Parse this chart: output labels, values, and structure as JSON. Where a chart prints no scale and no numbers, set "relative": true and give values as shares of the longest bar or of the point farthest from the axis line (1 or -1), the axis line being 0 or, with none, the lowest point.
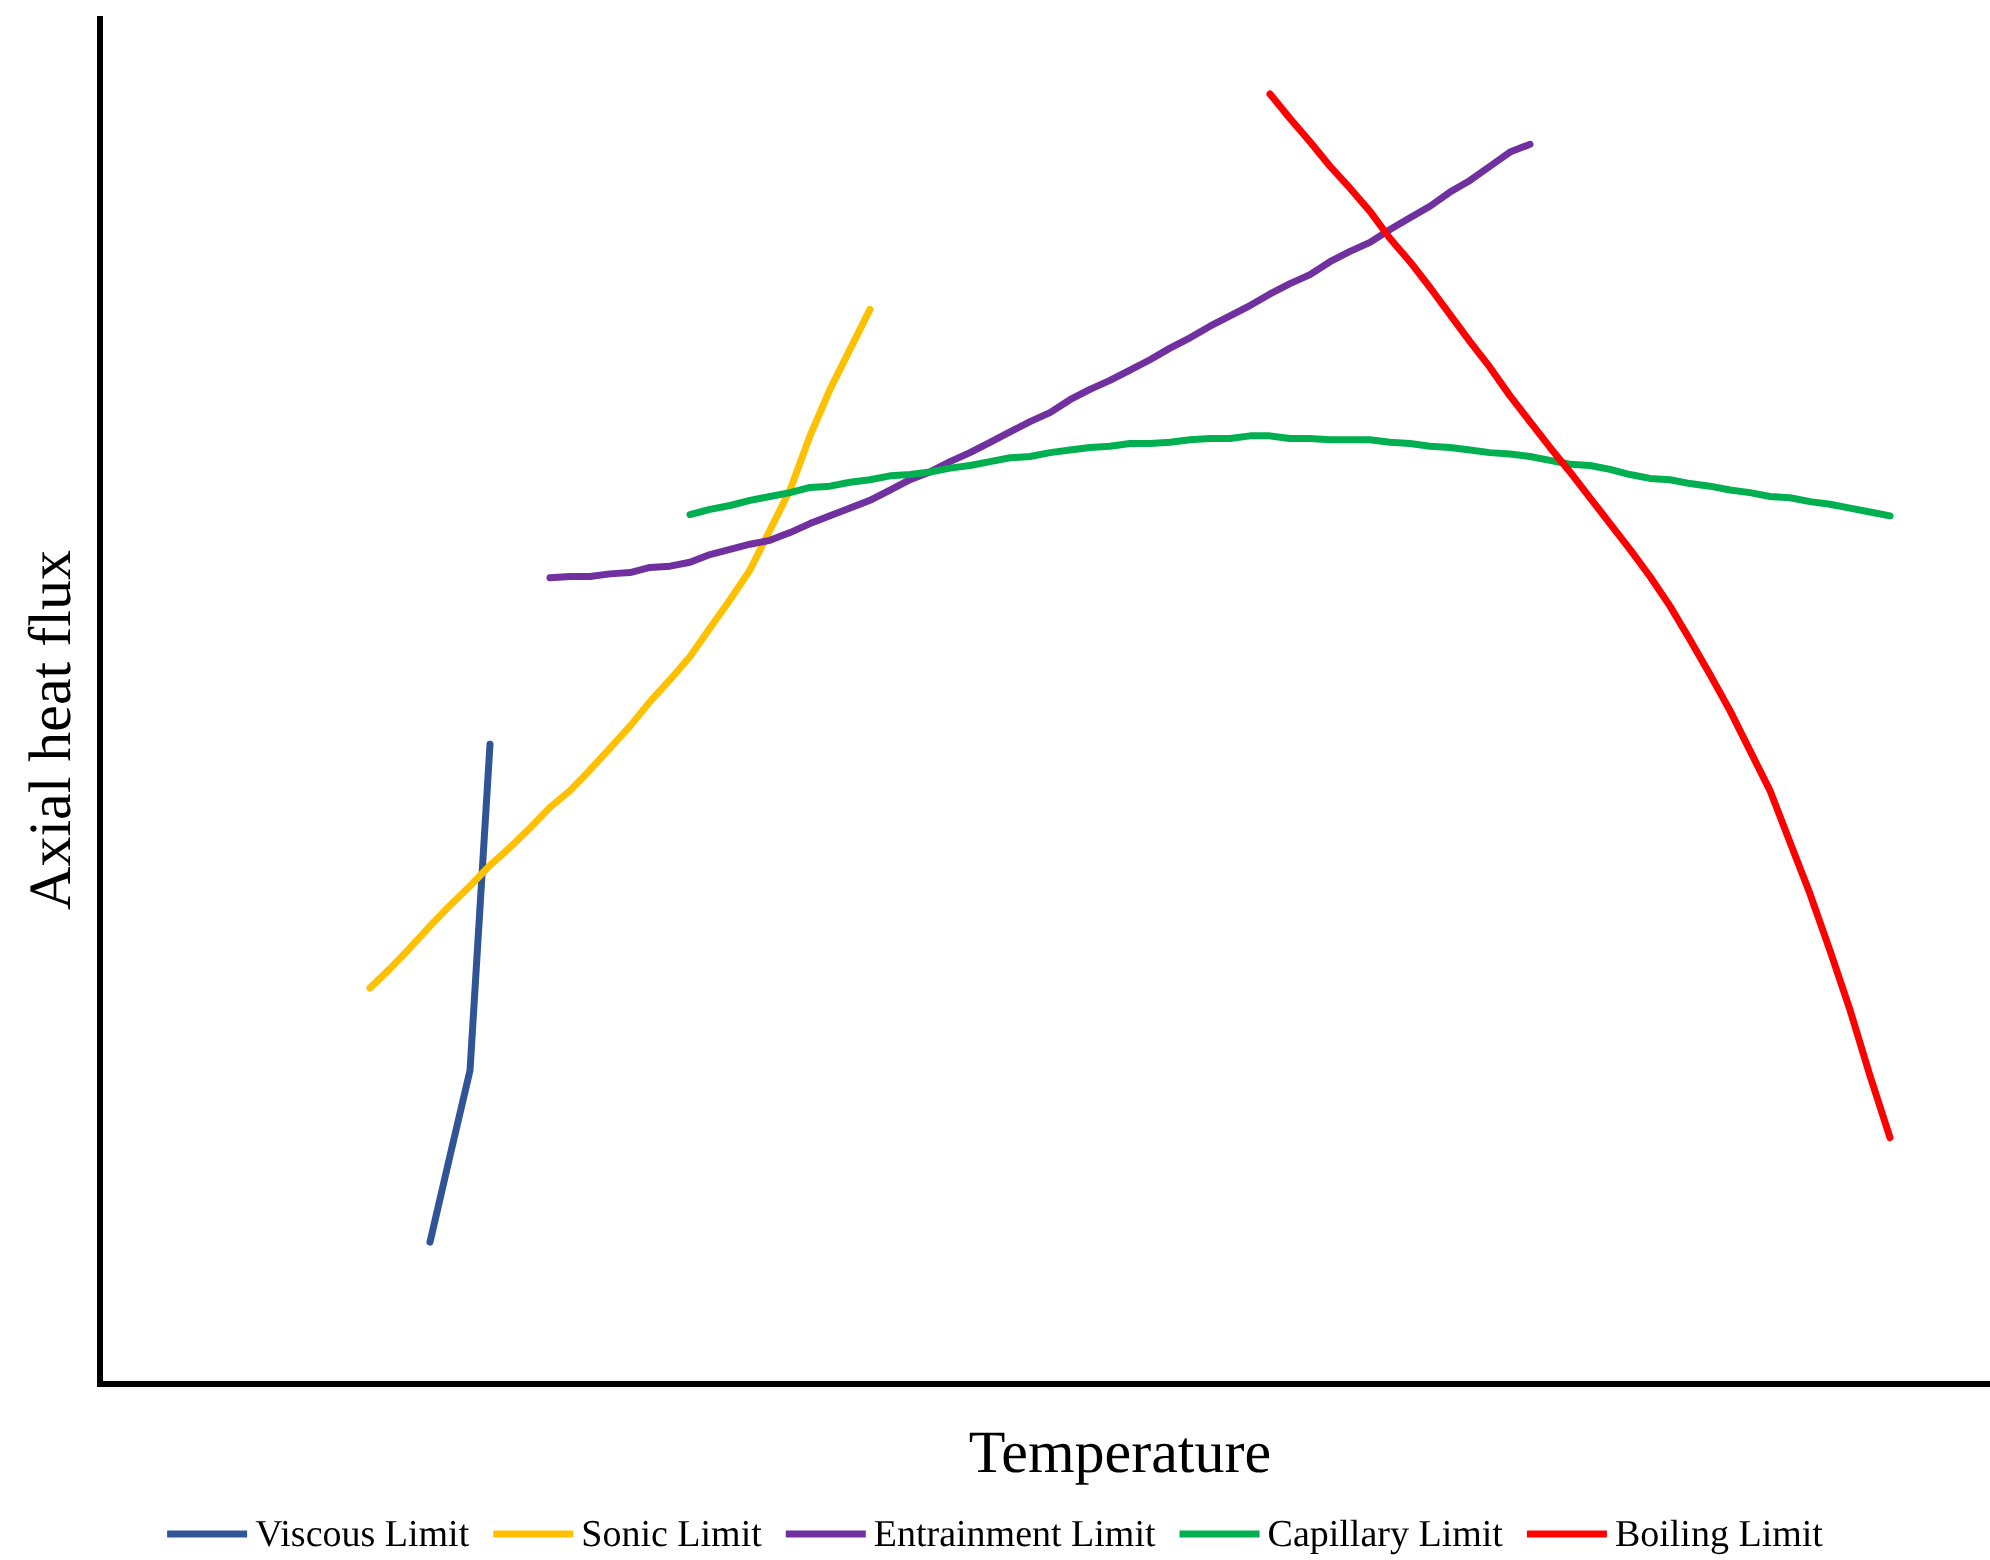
{
  "chart_data": {
    "type": "line",
    "relative": true,
    "xlabel": "Temperature",
    "ylabel": "Axial heat flux",
    "legend": "bottom",
    "categories": [
      null,
      null,
      null,
      null,
      null,
      null,
      null,
      null,
      null,
      null,
      null,
      null,
      null,
      null,
      null,
      null,
      null,
      null,
      null,
      null,
      null,
      null,
      null,
      null,
      null,
      null,
      null,
      null,
      null,
      null,
      null,
      null,
      null,
      null,
      null,
      null,
      null,
      null,
      null,
      null,
      null,
      null,
      null,
      null,
      null,
      null,
      null,
      null,
      null,
      null,
      null,
      null,
      null,
      null,
      null,
      null,
      null,
      null,
      null,
      null,
      null,
      null,
      null,
      null,
      null,
      null,
      null,
      null,
      null,
      null,
      null,
      null,
      null,
      null,
      null,
      null,
      null
    ],
    "series": [
      {
        "name": "Viscous Limit",
        "color": "#2f5597",
        "values": [
          null,
          null,
          null,
          0.11,
          0.177,
          0.243,
          0.496,
          null,
          null,
          null,
          null,
          null,
          null,
          null,
          null,
          null,
          null,
          null,
          null,
          null,
          null,
          null,
          null,
          null,
          null,
          null,
          null,
          null,
          null,
          null,
          null,
          null,
          null,
          null,
          null,
          null,
          null,
          null,
          null,
          null,
          null,
          null,
          null,
          null,
          null,
          null,
          null,
          null,
          null,
          null,
          null,
          null,
          null,
          null,
          null,
          null,
          null,
          null,
          null,
          null,
          null,
          null,
          null,
          null,
          null,
          null,
          null,
          null,
          null,
          null,
          null,
          null,
          null,
          null,
          null,
          null,
          null
        ]
      },
      {
        "name": "Sonic Limit",
        "color": "#ffc000",
        "values": [
          0.307,
          0.322,
          0.338,
          0.355,
          0.371,
          0.386,
          0.402,
          0.416,
          0.431,
          0.447,
          0.46,
          0.476,
          0.493,
          0.51,
          0.529,
          0.546,
          0.564,
          0.586,
          0.608,
          0.631,
          0.662,
          0.693,
          0.735,
          0.771,
          0.802,
          0.833,
          null,
          null,
          null,
          null,
          null,
          null,
          null,
          null,
          null,
          null,
          null,
          null,
          null,
          null,
          null,
          null,
          null,
          null,
          null,
          null,
          null,
          null,
          null,
          null,
          null,
          null,
          null,
          null,
          null,
          null,
          null,
          null,
          null,
          null,
          null,
          null,
          null,
          null,
          null,
          null,
          null,
          null,
          null,
          null,
          null,
          null,
          null,
          null,
          null,
          null,
          null
        ]
      },
      {
        "name": "Entrainment Limit",
        "color": "#7030a0",
        "values": [
          null,
          null,
          null,
          null,
          null,
          null,
          null,
          null,
          null,
          0.625,
          0.626,
          0.626,
          0.628,
          0.629,
          0.633,
          0.634,
          0.637,
          0.643,
          0.647,
          0.651,
          0.654,
          0.66,
          0.667,
          0.673,
          0.679,
          0.685,
          0.693,
          0.701,
          0.707,
          0.715,
          0.722,
          0.73,
          0.738,
          0.746,
          0.753,
          0.763,
          0.771,
          0.778,
          0.786,
          0.794,
          0.803,
          0.811,
          0.82,
          0.828,
          0.836,
          0.845,
          0.853,
          0.86,
          0.87,
          0.878,
          0.885,
          0.895,
          0.904,
          0.913,
          0.924,
          0.933,
          0.944,
          0.955,
          0.961,
          null,
          null,
          null,
          null,
          null,
          null,
          null,
          null,
          null,
          null,
          null,
          null,
          null,
          null,
          null,
          null,
          null,
          null
        ]
      },
      {
        "name": "Capillary Limit",
        "color": "#00b050",
        "values": [
          null,
          null,
          null,
          null,
          null,
          null,
          null,
          null,
          null,
          null,
          null,
          null,
          null,
          null,
          null,
          null,
          0.674,
          0.678,
          0.681,
          0.685,
          0.688,
          0.691,
          0.695,
          0.696,
          0.699,
          0.701,
          0.704,
          0.705,
          0.707,
          0.71,
          0.712,
          0.715,
          0.718,
          0.719,
          0.722,
          0.724,
          0.726,
          0.727,
          0.729,
          0.729,
          0.73,
          0.732,
          0.733,
          0.733,
          0.735,
          0.735,
          0.733,
          0.733,
          0.732,
          0.732,
          0.732,
          0.73,
          0.729,
          0.727,
          0.726,
          0.724,
          0.722,
          0.721,
          0.719,
          0.716,
          0.713,
          0.712,
          0.709,
          0.705,
          0.702,
          0.701,
          0.698,
          0.696,
          0.693,
          0.691,
          0.688,
          0.687,
          0.684,
          0.682,
          0.679,
          0.676,
          0.673
        ]
      },
      {
        "name": "Boiling Limit",
        "color": "#ff0000",
        "values": [
          null,
          null,
          null,
          null,
          null,
          null,
          null,
          null,
          null,
          null,
          null,
          null,
          null,
          null,
          null,
          null,
          null,
          null,
          null,
          null,
          null,
          null,
          null,
          null,
          null,
          null,
          null,
          null,
          null,
          null,
          null,
          null,
          null,
          null,
          null,
          null,
          null,
          null,
          null,
          null,
          null,
          null,
          null,
          null,
          null,
          1,
          0.981,
          0.963,
          0.944,
          0.927,
          0.909,
          0.888,
          0.87,
          0.85,
          0.829,
          0.808,
          0.788,
          0.766,
          0.746,
          0.726,
          0.707,
          0.687,
          0.667,
          0.647,
          0.626,
          0.603,
          0.577,
          0.55,
          0.522,
          0.491,
          0.46,
          0.42,
          0.38,
          0.336,
          0.29,
          0.239,
          0.191
        ]
      }
    ]
  }
}
